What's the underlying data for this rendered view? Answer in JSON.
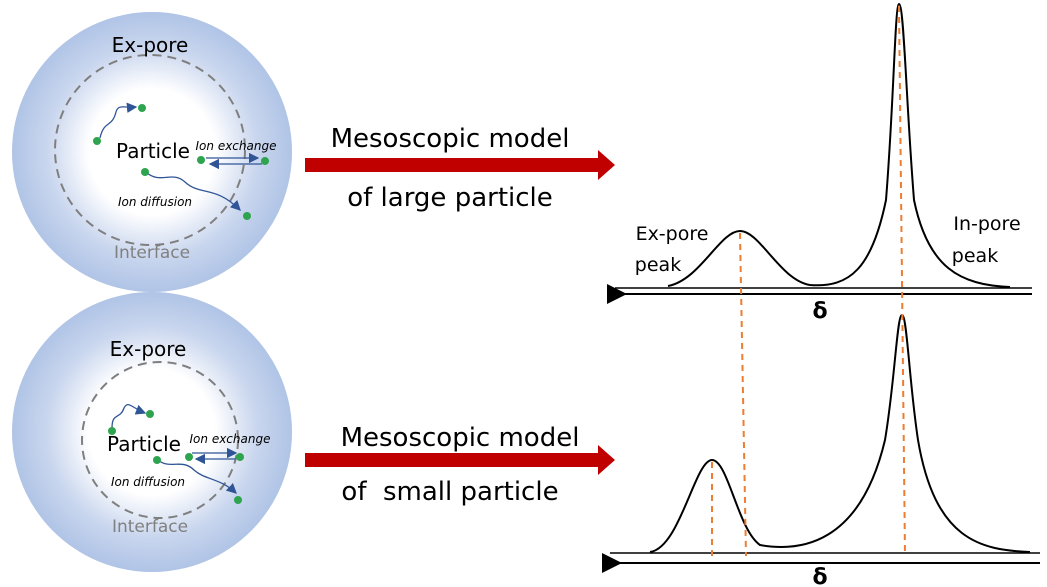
{
  "panels": [
    {
      "particle": {
        "outer": "Ex-pore",
        "inner": "Particle",
        "exchange": "Ion exchange",
        "diffusion": "Ion diffusion",
        "interface": "Interface"
      },
      "model": [
        "Mesoscopic model",
        "of large particle"
      ],
      "spectrum": {
        "ex_pore_peak": [
          "Ex-pore",
          "peak"
        ],
        "in_pore_peak": [
          "In-pore",
          "peak"
        ],
        "axis": "δ"
      }
    },
    {
      "particle": {
        "outer": "Ex-pore",
        "inner": "Particle",
        "exchange": "Ion exchange",
        "diffusion": "Ion diffusion",
        "interface": "Interface"
      },
      "model": [
        "Mesoscopic model",
        "of  small particle"
      ],
      "spectrum": {
        "axis": "δ"
      }
    }
  ]
}
